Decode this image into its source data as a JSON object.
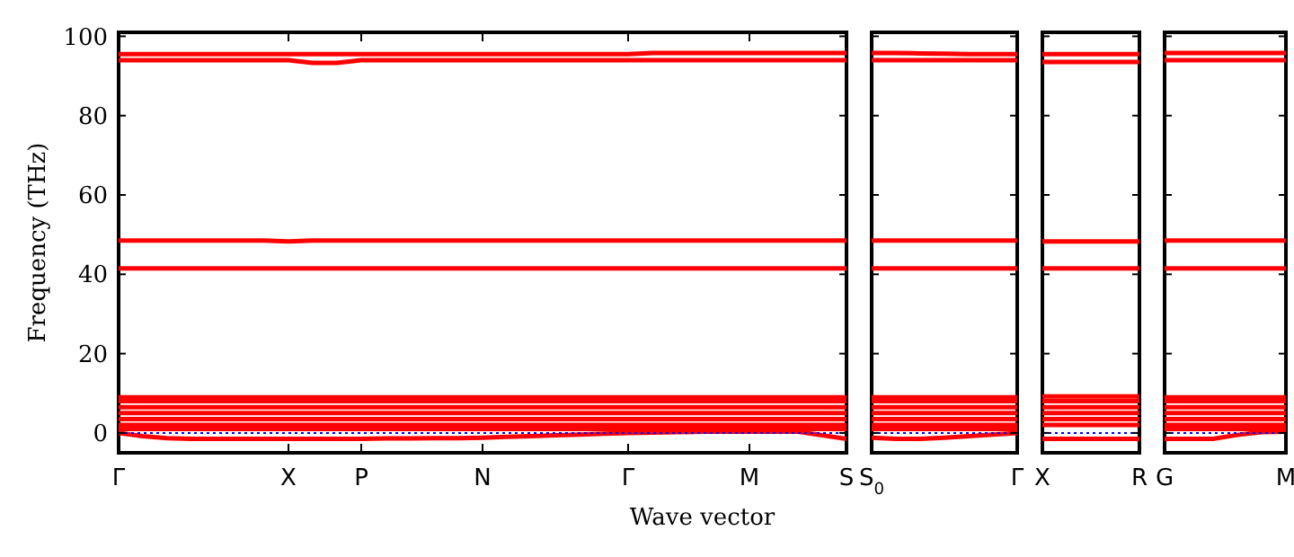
{
  "chart_data": [
    {
      "type": "line",
      "xlabel": "Wave vector",
      "ylabel": "Frequency (THz)",
      "categories": [
        "Γ",
        null,
        null,
        null,
        null,
        null,
        null,
        "X",
        null,
        null,
        "P",
        null,
        null,
        null,
        null,
        "N",
        null,
        null,
        null,
        null,
        null,
        "Γ",
        null,
        null,
        null,
        null,
        "M",
        null,
        null,
        null,
        "S"
      ],
      "ylim": [
        -5,
        101
      ],
      "yticks": [
        0,
        20,
        40,
        60,
        80,
        100
      ],
      "grid": false,
      "ref_lines": [
        {
          "axis": "y",
          "value": 0,
          "color": "#0000ff",
          "line_style": "dotted"
        }
      ],
      "series": [
        {
          "color": "#ff0000",
          "values": [
            95.5,
            95.5,
            95.5,
            95.5,
            95.5,
            95.5,
            95.5,
            95.5,
            95.5,
            95.5,
            95.5,
            95.5,
            95.5,
            95.5,
            95.5,
            95.5,
            95.5,
            95.5,
            95.5,
            95.5,
            95.5,
            95.5,
            95.8,
            95.8,
            95.8,
            95.8,
            95.8,
            95.8,
            95.8,
            95.8,
            95.8
          ]
        },
        {
          "color": "#ff0000",
          "values": [
            94,
            94,
            94,
            94,
            94,
            94,
            94,
            94,
            93.3,
            93.3,
            94,
            94,
            94,
            94,
            94,
            94,
            94,
            94,
            94,
            94,
            94,
            94,
            94,
            94,
            94,
            94,
            94,
            94,
            94,
            94,
            94
          ]
        },
        {
          "color": "#ff0000",
          "values": [
            48.5,
            48.5,
            48.5,
            48.5,
            48.5,
            48.5,
            48.5,
            48.3,
            48.5,
            48.5,
            48.5,
            48.5,
            48.5,
            48.5,
            48.5,
            48.5,
            48.5,
            48.5,
            48.5,
            48.5,
            48.5,
            48.5,
            48.5,
            48.5,
            48.5,
            48.5,
            48.5,
            48.5,
            48.5,
            48.5,
            48.5
          ]
        },
        {
          "color": "#ff0000",
          "values": [
            41.5,
            41.5,
            41.5,
            41.5,
            41.5,
            41.5,
            41.5,
            41.5,
            41.5,
            41.5,
            41.5,
            41.5,
            41.5,
            41.5,
            41.5,
            41.5,
            41.5,
            41.5,
            41.5,
            41.5,
            41.5,
            41.5,
            41.5,
            41.5,
            41.5,
            41.5,
            41.5,
            41.5,
            41.5,
            41.5,
            41.5
          ]
        },
        {
          "color": "#ff0000",
          "values": [
            9,
            9,
            9,
            9,
            9,
            9,
            9,
            9,
            9,
            9,
            9,
            9,
            9,
            9,
            9,
            9,
            9,
            9,
            9,
            9,
            9,
            9,
            9,
            9,
            9,
            9,
            9,
            9,
            9,
            9,
            9
          ]
        },
        {
          "color": "#ff0000",
          "values": [
            8,
            8,
            8,
            8,
            8,
            8,
            8,
            8,
            8,
            8,
            8,
            8,
            8,
            8,
            8,
            8,
            8,
            8,
            8,
            8,
            8,
            8,
            8,
            8,
            8,
            8,
            8,
            8,
            8,
            8,
            8
          ]
        },
        {
          "color": "#ff0000",
          "values": [
            6.5,
            6.5,
            6.5,
            6.5,
            6.5,
            6.5,
            6.5,
            6.5,
            6.5,
            6.5,
            6.5,
            6.5,
            6.5,
            6.5,
            6.5,
            6.5,
            6.5,
            6.5,
            6.5,
            6.5,
            6.5,
            6.5,
            6.5,
            6.5,
            6.5,
            6.5,
            6.5,
            6.5,
            6.5,
            6.5,
            6.5
          ]
        },
        {
          "color": "#ff0000",
          "values": [
            5,
            5,
            5,
            5,
            5,
            5,
            5,
            5,
            5,
            5,
            5,
            5,
            5,
            5,
            5,
            5,
            5,
            5,
            5,
            5,
            5,
            5,
            5,
            5,
            5,
            5,
            5,
            5,
            5,
            5,
            5
          ]
        },
        {
          "color": "#ff0000",
          "values": [
            3.5,
            3.5,
            3.5,
            3.5,
            3.5,
            3.5,
            3.5,
            3.5,
            3.5,
            3.5,
            3.5,
            3.5,
            3.5,
            3.5,
            3.5,
            3.5,
            3.5,
            3.5,
            3.5,
            3.5,
            3.5,
            3.5,
            3.5,
            3.5,
            3.5,
            3.5,
            3.5,
            3.5,
            3.5,
            3.5,
            3.5
          ]
        },
        {
          "color": "#ff0000",
          "values": [
            2,
            2,
            2,
            2,
            2,
            2,
            2,
            2,
            2,
            2,
            2,
            2,
            2,
            2,
            2,
            2,
            2,
            2,
            2,
            2,
            2,
            2,
            2,
            2,
            2,
            2,
            2,
            2,
            2,
            2,
            2
          ]
        },
        {
          "color": "#ff0000",
          "values": [
            1,
            1,
            1,
            1,
            1,
            1,
            1,
            1,
            1,
            1,
            1,
            1,
            1,
            1,
            1,
            1,
            1,
            1,
            1,
            1,
            1,
            1,
            1,
            1,
            1,
            1,
            1,
            1,
            1,
            1,
            1
          ]
        },
        {
          "color": "#ff0000",
          "values": [
            0,
            -0.8,
            -1.3,
            -1.5,
            -1.5,
            -1.5,
            -1.5,
            -1.5,
            -1.5,
            -1.5,
            -1.5,
            -1.4,
            -1.4,
            -1.3,
            -1.3,
            -1.2,
            -1,
            -0.8,
            -0.6,
            -0.4,
            -0.2,
            0,
            0.1,
            0.2,
            0.3,
            0.3,
            0.3,
            0.3,
            0.3,
            -0.6,
            -1.5
          ]
        }
      ]
    },
    {
      "type": "line",
      "tick_labels": "x",
      "categories": [
        "S$_{0}$",
        null,
        null,
        null,
        null,
        null,
        "Γ"
      ],
      "ylim": [
        -5,
        101
      ],
      "yticks": [
        0,
        20,
        40,
        60,
        80,
        100
      ],
      "grid": false,
      "ref_lines": [
        {
          "axis": "y",
          "value": 0,
          "color": "#0000ff",
          "line_style": "dotted"
        }
      ],
      "series": [
        {
          "color": "#ff0000",
          "values": [
            95.8,
            95.8,
            95.7,
            95.6,
            95.5,
            95.5,
            95.5
          ]
        },
        {
          "color": "#ff0000",
          "values": [
            94,
            94,
            94,
            94,
            94,
            94,
            94
          ]
        },
        {
          "color": "#ff0000",
          "values": [
            48.5,
            48.5,
            48.5,
            48.5,
            48.5,
            48.5,
            48.5
          ]
        },
        {
          "color": "#ff0000",
          "values": [
            41.5,
            41.5,
            41.5,
            41.5,
            41.5,
            41.5,
            41.5
          ]
        },
        {
          "color": "#ff0000",
          "values": [
            9,
            9,
            9,
            9,
            9,
            9,
            9
          ]
        },
        {
          "color": "#ff0000",
          "values": [
            8,
            8,
            8,
            8,
            8,
            8,
            8
          ]
        },
        {
          "color": "#ff0000",
          "values": [
            6.5,
            6.5,
            6.5,
            6.5,
            6.5,
            6.5,
            6.5
          ]
        },
        {
          "color": "#ff0000",
          "values": [
            5,
            5,
            5,
            5,
            5,
            5,
            5
          ]
        },
        {
          "color": "#ff0000",
          "values": [
            3.5,
            3.5,
            3.5,
            3.5,
            3.5,
            3.5,
            3.5
          ]
        },
        {
          "color": "#ff0000",
          "values": [
            2,
            2,
            2,
            2,
            2,
            2,
            2
          ]
        },
        {
          "color": "#ff0000",
          "values": [
            1,
            1,
            1,
            1,
            1,
            1,
            1
          ]
        },
        {
          "color": "#ff0000",
          "values": [
            -1.2,
            -1.5,
            -1.5,
            -1.2,
            -0.8,
            -0.4,
            0
          ]
        }
      ]
    },
    {
      "type": "line",
      "tick_labels": "x",
      "categories": [
        "X",
        null,
        null,
        null,
        "R"
      ],
      "ylim": [
        -5,
        101
      ],
      "yticks": [
        0,
        20,
        40,
        60,
        80,
        100
      ],
      "grid": false,
      "ref_lines": [
        {
          "axis": "y",
          "value": 0,
          "color": "#0000ff",
          "line_style": "dotted"
        }
      ],
      "series": [
        {
          "color": "#ff0000",
          "values": [
            95.5,
            95.5,
            95.5,
            95.5,
            95.5
          ]
        },
        {
          "color": "#ff0000",
          "values": [
            93.5,
            93.5,
            93.5,
            93.5,
            93.5
          ]
        },
        {
          "color": "#ff0000",
          "values": [
            48.3,
            48.3,
            48.3,
            48.3,
            48.3
          ]
        },
        {
          "color": "#ff0000",
          "values": [
            41.5,
            41.5,
            41.5,
            41.5,
            41.5
          ]
        },
        {
          "color": "#ff0000",
          "values": [
            9.2,
            9.2,
            9.2,
            9.2,
            9.2
          ]
        },
        {
          "color": "#ff0000",
          "values": [
            8,
            8,
            8,
            8,
            8
          ]
        },
        {
          "color": "#ff0000",
          "values": [
            6.5,
            6.5,
            6.5,
            6.5,
            6.5
          ]
        },
        {
          "color": "#ff0000",
          "values": [
            5,
            5,
            5,
            5,
            5
          ]
        },
        {
          "color": "#ff0000",
          "values": [
            3.5,
            3.5,
            3.5,
            3.5,
            3.5
          ]
        },
        {
          "color": "#ff0000",
          "values": [
            2,
            2,
            2,
            2,
            2
          ]
        },
        {
          "color": "#ff0000",
          "values": [
            -1.5,
            -1.5,
            -1.5,
            -1.5,
            -1.5
          ]
        }
      ]
    },
    {
      "type": "line",
      "tick_labels": "x",
      "categories": [
        "G",
        null,
        null,
        null,
        null,
        "M"
      ],
      "ylim": [
        -5,
        101
      ],
      "yticks": [
        0,
        20,
        40,
        60,
        80,
        100
      ],
      "grid": false,
      "ref_lines": [
        {
          "axis": "y",
          "value": 0,
          "color": "#0000ff",
          "line_style": "dotted"
        }
      ],
      "series": [
        {
          "color": "#ff0000",
          "values": [
            95.8,
            95.8,
            95.8,
            95.8,
            95.8,
            95.8
          ]
        },
        {
          "color": "#ff0000",
          "values": [
            94,
            94,
            94,
            94,
            94,
            94
          ]
        },
        {
          "color": "#ff0000",
          "values": [
            48.5,
            48.5,
            48.5,
            48.5,
            48.5,
            48.5
          ]
        },
        {
          "color": "#ff0000",
          "values": [
            41.5,
            41.5,
            41.5,
            41.5,
            41.5,
            41.5
          ]
        },
        {
          "color": "#ff0000",
          "values": [
            9,
            9,
            9,
            9,
            9,
            9
          ]
        },
        {
          "color": "#ff0000",
          "values": [
            8,
            8,
            8,
            8,
            8,
            8
          ]
        },
        {
          "color": "#ff0000",
          "values": [
            6.5,
            6.5,
            6.5,
            6.5,
            6.5,
            6.5
          ]
        },
        {
          "color": "#ff0000",
          "values": [
            5,
            5,
            5,
            5,
            5,
            5
          ]
        },
        {
          "color": "#ff0000",
          "values": [
            3.5,
            3.5,
            3.5,
            3.5,
            3.5,
            3.5
          ]
        },
        {
          "color": "#ff0000",
          "values": [
            2,
            2,
            2,
            2,
            2,
            2
          ]
        },
        {
          "color": "#ff0000",
          "values": [
            1,
            1,
            1,
            1,
            1,
            1
          ]
        },
        {
          "color": "#ff0000",
          "values": [
            -1.5,
            -1.5,
            -1.5,
            -0.5,
            0.2,
            0.3
          ]
        }
      ]
    }
  ]
}
